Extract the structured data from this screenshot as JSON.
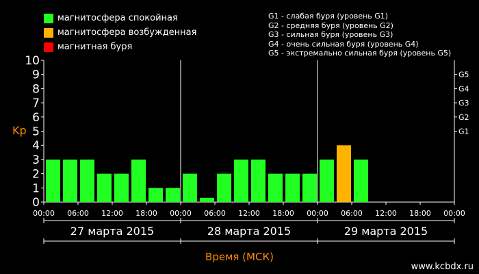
{
  "legend": {
    "items": [
      {
        "label": "магнитосфера спокойная",
        "color": "#22ff22"
      },
      {
        "label": "магнитосфера возбужденная",
        "color": "#ffb300"
      },
      {
        "label": "магнитная буря",
        "color": "#ff0000"
      }
    ]
  },
  "g_legend": [
    "G1 - слабая буря (уровень G1)",
    "G2 - средняя буря (уровень G2)",
    "G3 - сильная буря (уровень G3)",
    "G4 - очень сильная буря (уровень G4)",
    "G5 - экстремально сильная буря (уровень G5)"
  ],
  "ylabel": "Kp",
  "xlabel": "Время (МСК)",
  "watermark": "www.kcbdx.ru",
  "chart_data": {
    "type": "bar",
    "ylabel": "Kp",
    "xlabel": "Время (МСК)",
    "ylim": [
      0,
      10
    ],
    "y_ticks": [
      0,
      1,
      2,
      3,
      4,
      5,
      6,
      7,
      8,
      9,
      10
    ],
    "g_levels": [
      {
        "label": "G1",
        "kp": 5
      },
      {
        "label": "G2",
        "kp": 6
      },
      {
        "label": "G3",
        "kp": 7
      },
      {
        "label": "G4",
        "kp": 8
      },
      {
        "label": "G5",
        "kp": 9
      }
    ],
    "x_ticks": [
      "00:00",
      "06:00",
      "12:00",
      "18:00",
      "00:00",
      "06:00",
      "12:00",
      "18:00",
      "00:00",
      "06:00",
      "12:00",
      "18:00",
      "00:00"
    ],
    "days": [
      "27 марта 2015",
      "28 марта 2015",
      "29 марта 2015"
    ],
    "intervals_per_day": 8,
    "values": [
      3,
      3,
      3,
      2,
      2,
      3,
      1,
      1,
      2,
      0.3,
      2,
      3,
      3,
      2,
      2,
      2,
      3,
      4,
      3
    ],
    "colors": {
      "quiet": "#22ff22",
      "excited": "#ffb300",
      "storm": "#ff0000"
    },
    "grid": false
  }
}
